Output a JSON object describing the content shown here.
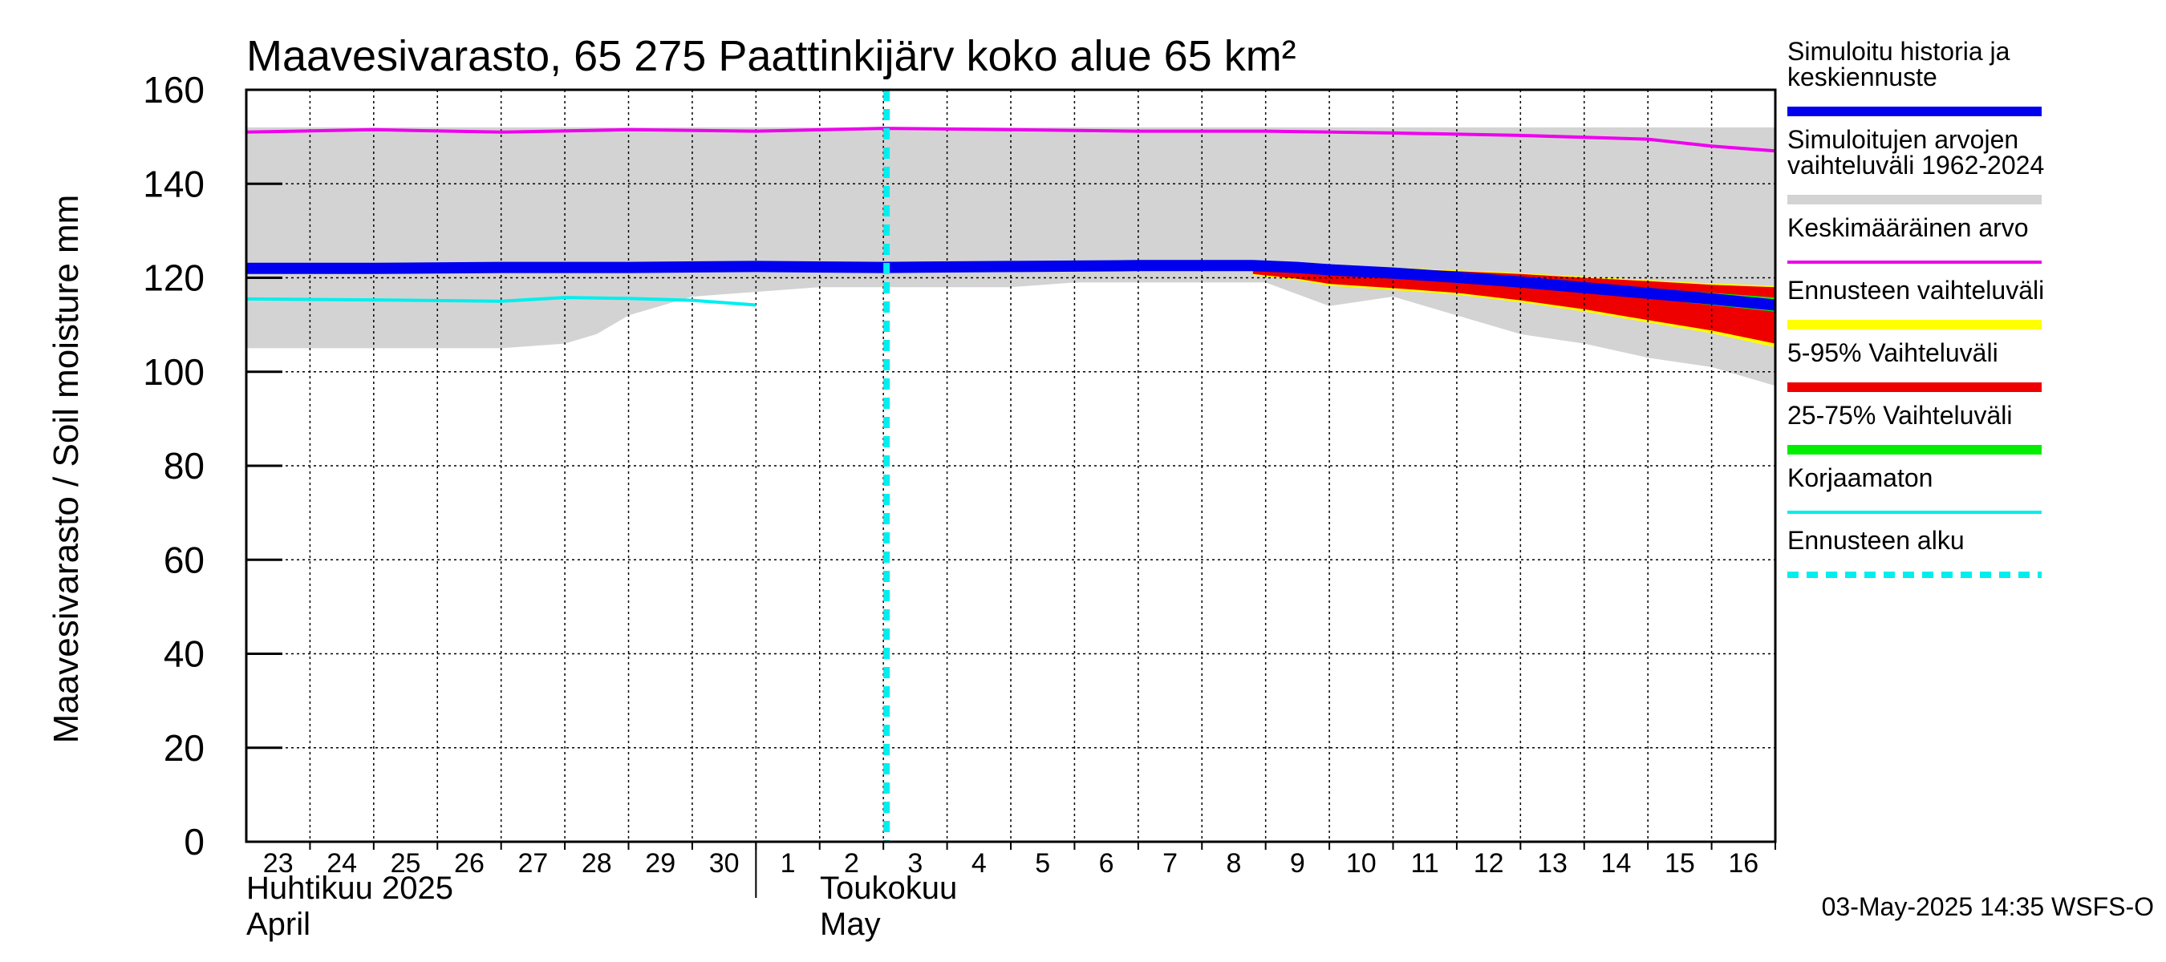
{
  "chart_data": {
    "type": "area",
    "title": "Maavesivarasto, 65 275 Paattinkijärv koko alue 65 km²",
    "ylabel": "Maavesivarasto / Soil moisture   mm",
    "ylim": [
      0,
      160
    ],
    "yticks": [
      "0",
      "20",
      "40",
      "60",
      "80",
      "100",
      "120",
      "140",
      "160"
    ],
    "x_day_labels": [
      "23",
      "24",
      "25",
      "26",
      "27",
      "28",
      "29",
      "30",
      "1",
      "2",
      "3",
      "4",
      "5",
      "6",
      "7",
      "8",
      "9",
      "10",
      "11",
      "12",
      "13",
      "14",
      "15",
      "16"
    ],
    "month_labels": {
      "april_fi": "Huhtikuu  2025",
      "april_en": "April",
      "may_fi": "Toukokuu",
      "may_en": "May"
    },
    "forecast_start_day": 10.05,
    "footer": "03-May-2025 14:35 WSFS-O",
    "legend": [
      {
        "label": "Simuloitu historia ja keskiennuste",
        "lines": [
          "Simuloitu historia ja",
          "keskiennuste"
        ],
        "color": "#0000ee",
        "style": "solid"
      },
      {
        "label": "Simuloitujen arvojen vaihteluväli 1962-2024",
        "lines": [
          "Simuloitujen arvojen",
          "vaihteluväli 1962-2024"
        ],
        "color": "#d3d3d3",
        "style": "solid"
      },
      {
        "label": "Keskimääräinen arvo",
        "lines": [
          "Keskimääräinen arvo"
        ],
        "color": "#ee00ee",
        "style": "thin"
      },
      {
        "label": "Ennusteen vaihteluväli",
        "lines": [
          "Ennusteen vaihteluväli"
        ],
        "color": "#ffff00",
        "style": "solid"
      },
      {
        "label": "5-95% Vaihteluväli",
        "lines": [
          "5-95% Vaihteluväli"
        ],
        "color": "#ee0000",
        "style": "solid"
      },
      {
        "label": "25-75% Vaihteluväli",
        "lines": [
          "25-75% Vaihteluväli"
        ],
        "color": "#00ee00",
        "style": "solid"
      },
      {
        "label": "Korjaamaton",
        "lines": [
          "Korjaamaton"
        ],
        "color": "#00eeee",
        "style": "thin"
      },
      {
        "label": "Ennusteen alku",
        "lines": [
          "Ennusteen alku"
        ],
        "color": "#00eeee",
        "style": "dashed"
      }
    ],
    "series": {
      "hist_range": {
        "x": [
          0,
          3,
          4,
          5,
          5.5,
          6,
          7,
          8,
          9,
          10,
          11,
          12,
          13,
          14,
          15,
          15.8,
          16,
          17,
          18,
          19,
          20,
          21,
          22,
          23,
          24
        ],
        "upper": [
          152,
          152,
          152,
          152,
          152,
          152,
          152,
          152,
          152,
          152,
          152,
          152,
          152,
          152,
          152,
          152,
          152,
          152,
          152,
          152,
          152,
          152,
          152,
          152,
          152
        ],
        "lower": [
          105,
          105,
          105,
          106,
          108,
          112,
          116,
          117,
          118,
          118,
          118,
          118,
          119,
          119,
          119,
          119,
          119,
          114,
          116,
          112,
          108,
          106,
          103,
          101,
          97
        ]
      },
      "ensemble_full": {
        "x": [
          15.8,
          16.5,
          17,
          18,
          19,
          20,
          21,
          22,
          23,
          24
        ],
        "upper": [
          123.5,
          123,
          122.7,
          122.2,
          121.6,
          121,
          120.2,
          119.5,
          118.8,
          118.3
        ],
        "lower": [
          120.5,
          119.5,
          118.3,
          117.4,
          116.4,
          114.8,
          112.8,
          110.5,
          108.2,
          105.2
        ]
      },
      "ensemble_5_95": {
        "x": [
          15.8,
          16.5,
          17,
          18,
          19,
          20,
          21,
          22,
          23,
          24
        ],
        "upper": [
          123.3,
          122.8,
          122.5,
          122,
          121.4,
          120.8,
          120,
          119.3,
          118.5,
          118
        ],
        "lower": [
          120.8,
          119.8,
          118.7,
          117.8,
          116.8,
          115.2,
          113.3,
          111,
          108.8,
          106
        ]
      },
      "ensemble_25_75": {
        "x": [
          15.8,
          16.5,
          17,
          18,
          19,
          20,
          21,
          22,
          23,
          24
        ],
        "upper": [
          122.8,
          122.3,
          121.8,
          121.2,
          120.5,
          119.6,
          118.6,
          117.6,
          116.8,
          115.8
        ],
        "lower": [
          122.2,
          121.6,
          121,
          120.3,
          119.4,
          118.2,
          116.9,
          115.6,
          114.2,
          112.8
        ]
      },
      "median": {
        "x": [
          0,
          2,
          4,
          6,
          8,
          10,
          12,
          14,
          15.8,
          16.5,
          17,
          18,
          19,
          20,
          21,
          22,
          23,
          24
        ],
        "y": [
          122,
          122,
          122.2,
          122.2,
          122.4,
          122.2,
          122.4,
          122.6,
          122.6,
          122.2,
          121.7,
          121,
          120.1,
          119.1,
          117.9,
          116.7,
          115.5,
          114.2
        ]
      },
      "mean": {
        "x": [
          0,
          2,
          4,
          6,
          8,
          10,
          12,
          14,
          16,
          18,
          20,
          22,
          23,
          24
        ],
        "y": [
          151,
          151.5,
          151,
          151.5,
          151.2,
          151.8,
          151.5,
          151.2,
          151.2,
          150.8,
          150.3,
          149.5,
          148,
          147
        ]
      },
      "uncorrected": {
        "x": [
          0,
          2,
          4,
          5,
          6,
          7,
          8
        ],
        "y": [
          115.5,
          115.3,
          115,
          115.8,
          115.6,
          115.2,
          114.2
        ]
      }
    }
  }
}
